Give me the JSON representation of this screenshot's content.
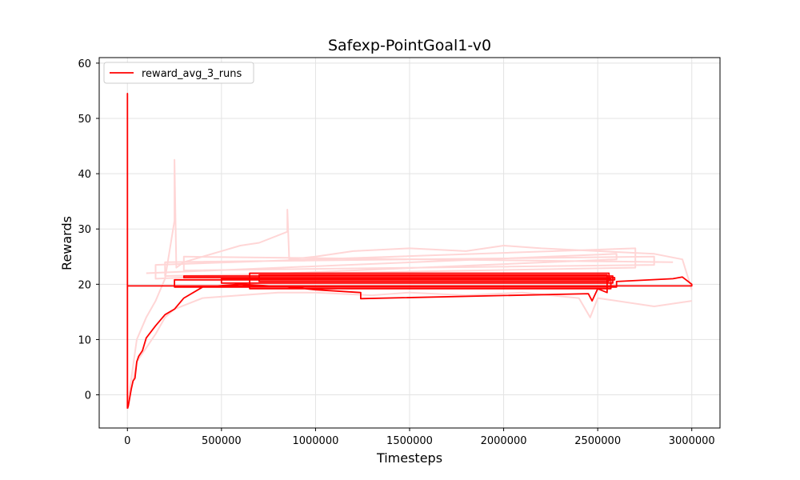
{
  "chart_data": {
    "type": "line",
    "title": "Safexp-PointGoal1-v0",
    "xlabel": "Timesteps",
    "ylabel": "Rewards",
    "xlim": [
      -150000,
      3150000
    ],
    "ylim": [
      -6,
      61
    ],
    "xticks": [
      0,
      500000,
      1000000,
      1500000,
      2000000,
      2500000,
      3000000
    ],
    "xtick_labels": [
      "0",
      "500000",
      "1000000",
      "1500000",
      "2000000",
      "2500000",
      "3000000"
    ],
    "yticks": [
      0,
      10,
      20,
      30,
      40,
      50,
      60
    ],
    "ytick_labels": [
      "0",
      "10",
      "20",
      "30",
      "40",
      "50",
      "60"
    ],
    "grid": true,
    "legend": {
      "position": "top-left",
      "entries": [
        "reward_avg_3_runs"
      ]
    },
    "colors": {
      "main": "#ff0000",
      "band": "#ffd6d6"
    },
    "series": [
      {
        "name": "reward_avg_3_runs",
        "color": "#ff0000",
        "x": [
          0,
          0,
          0,
          3000000,
          3000000,
          2950000,
          2900000,
          2600000,
          2600000,
          250000,
          250000,
          2590000,
          2590000,
          300000,
          300000,
          2580000,
          2580000,
          500000,
          500000,
          2570000,
          2570000,
          650000,
          650000,
          2560000,
          2560000,
          700000,
          700000,
          2550000,
          2550000,
          2500000,
          2470000,
          2450000,
          1240000,
          1240000,
          1000000,
          850000,
          600000,
          400000,
          300000,
          250000,
          200000,
          150000,
          100000,
          80000,
          60000,
          50000,
          40000,
          30000,
          20000,
          10000,
          5000,
          0
        ],
        "y": [
          -2.5,
          54.5,
          19.7,
          19.7,
          20.0,
          21.3,
          21.0,
          20.5,
          19.5,
          19.5,
          20.8,
          20.8,
          21.2,
          21.2,
          21.5,
          21.5,
          20.2,
          20.2,
          21.0,
          21.0,
          19.2,
          19.2,
          22.0,
          22.0,
          20.5,
          20.5,
          21.7,
          21.7,
          18.5,
          19.2,
          17.0,
          18.3,
          17.4,
          18.5,
          19.0,
          19.5,
          20.0,
          19.5,
          17.5,
          15.5,
          14.5,
          12.5,
          10.3,
          8.0,
          7.0,
          6.0,
          3.0,
          2.5,
          1.0,
          -1.0,
          -2.0,
          -2.5
        ]
      }
    ],
    "band_series": [
      {
        "name": "",
        "x": [
          0,
          50000,
          100000,
          150000,
          200000,
          250000,
          250000,
          260000,
          300000,
          400000,
          500000,
          600000,
          700000,
          850000,
          850000,
          860000,
          1000000,
          1200000,
          1500000,
          1800000,
          2000000,
          2200000,
          2500000,
          2800000,
          2950000,
          3000000
        ],
        "y": [
          -2.0,
          10.0,
          14.0,
          17.0,
          21.0,
          31.5,
          42.5,
          23.0,
          24.0,
          25.0,
          26.0,
          27.0,
          27.5,
          29.5,
          33.5,
          24.5,
          25.0,
          26.0,
          26.5,
          26.0,
          27.0,
          26.5,
          26.0,
          25.5,
          24.5,
          19.0
        ]
      },
      {
        "name": "",
        "x": [
          0,
          50000,
          100000,
          150000,
          200000,
          250000,
          400000,
          600000,
          800000,
          1000000,
          1300000,
          1500000,
          1800000,
          2100000,
          2400000,
          2460000,
          2500000,
          2800000,
          3000000
        ],
        "y": [
          -2.5,
          6.0,
          8.5,
          11.0,
          14.0,
          15.5,
          17.5,
          18.0,
          18.5,
          18.5,
          18.0,
          18.5,
          18.0,
          18.5,
          17.5,
          14.0,
          17.5,
          16.0,
          17.0
        ]
      },
      {
        "name": "",
        "x": [
          100000,
          2600000,
          2600000,
          150000,
          150000,
          2700000,
          2700000,
          200000,
          200000,
          2800000,
          2800000,
          300000,
          300000,
          2900000
        ],
        "y": [
          22.0,
          25.5,
          24.5,
          21.0,
          23.5,
          26.5,
          23.0,
          21.5,
          24.0,
          25.0,
          23.5,
          22.5,
          25.0,
          24.0
        ]
      }
    ]
  }
}
